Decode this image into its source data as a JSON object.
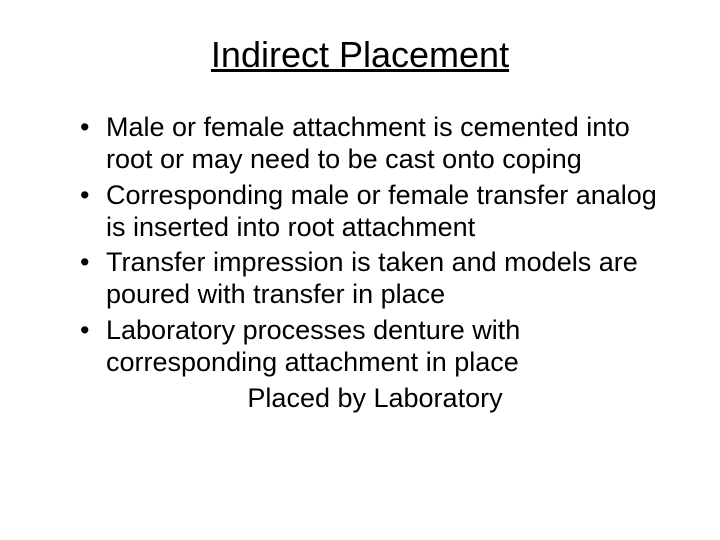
{
  "background_color": "#ffffff",
  "text_color": "#000000",
  "font_family": "Arial",
  "title": {
    "text": "Indirect Placement",
    "fontsize": 36,
    "underline": true,
    "align": "center"
  },
  "bullets": {
    "fontsize": 27,
    "items": [
      "Male or female attachment is cemented into root or may need to be cast onto coping",
      "Corresponding male or female transfer analog is inserted into root attachment",
      "Transfer impression is taken and models are poured with transfer in place",
      "Laboratory processes denture with corresponding attachment in place"
    ]
  },
  "footer": {
    "text": "Placed by Laboratory",
    "fontsize": 27,
    "align": "center"
  }
}
